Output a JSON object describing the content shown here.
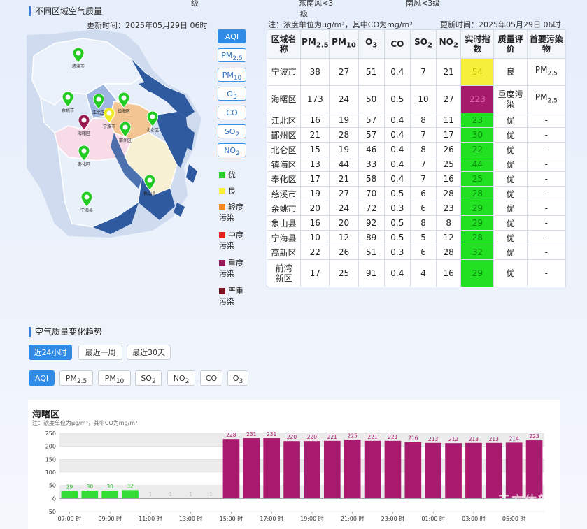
{
  "top_fragments": {
    "a": "级",
    "b": "东南风<3",
    "c": "级",
    "d": "南风<3级"
  },
  "map_section": {
    "title": "不同区域空气质量",
    "update_time": "更新时间：2025年05月29日 06时"
  },
  "markers": [
    {
      "name": "慈溪市",
      "color": "#22cc22"
    },
    {
      "name": "余姚市",
      "color": "#22cc22"
    },
    {
      "name": "江北区",
      "color": "#22cc22"
    },
    {
      "name": "镇海区",
      "color": "#22cc22"
    },
    {
      "name": "宁波市",
      "color": "#eeee22"
    },
    {
      "name": "海曙区",
      "color": "#9b1a52"
    },
    {
      "name": "北仑区",
      "color": "#22cc22"
    },
    {
      "name": "鄞州区",
      "color": "#22cc22"
    },
    {
      "name": "奉化区",
      "color": "#22cc22"
    },
    {
      "name": "象山县",
      "color": "#22cc22"
    },
    {
      "name": "宁海县",
      "color": "#22cc22"
    }
  ],
  "pollutant_buttons": [
    {
      "base": "AQI",
      "sub": ""
    },
    {
      "base": "PM",
      "sub": "2.5"
    },
    {
      "base": "PM",
      "sub": "10"
    },
    {
      "base": "O",
      "sub": "3"
    },
    {
      "base": "CO",
      "sub": ""
    },
    {
      "base": "SO",
      "sub": "2"
    },
    {
      "base": "NO",
      "sub": "2"
    }
  ],
  "legend": [
    {
      "label": "优",
      "color": "#22d022"
    },
    {
      "label": "良",
      "color": "#f6f03a"
    },
    {
      "label": "轻度污染",
      "color": "#f08c1e"
    },
    {
      "label": "中度污染",
      "color": "#e8201e"
    },
    {
      "label": "重度污染",
      "color": "#96195a"
    },
    {
      "label": "严重污染",
      "color": "#7a1020"
    }
  ],
  "table": {
    "note": "注：浓度单位为μg/m³，其中CO为mg/m³",
    "update_time": "更新时间：2025年05月29日 06时",
    "headers": [
      "区域名称",
      "PM2.5",
      "PM10",
      "O3",
      "CO",
      "SO2",
      "NO2",
      "实时指数",
      "质量评价",
      "首要污染物"
    ],
    "rows": [
      {
        "area": "宁波市",
        "pm25": "38",
        "pm10": "27",
        "o3": "51",
        "co": "0.4",
        "so2": "7",
        "no2": "21",
        "aqi": "54",
        "aqi_color": "#f6f03a",
        "aqi_text_color": "#c9c000",
        "level": "良",
        "primary_base": "PM",
        "primary_sub": "2.5"
      },
      {
        "area": "海曙区",
        "pm25": "173",
        "pm10": "24",
        "o3": "50",
        "co": "0.5",
        "so2": "10",
        "no2": "27",
        "aqi": "223",
        "aqi_color": "#a51a6a",
        "aqi_text_color": "#dd66aa",
        "level": "重度污染",
        "primary_base": "PM",
        "primary_sub": "2.5"
      },
      {
        "area": "江北区",
        "pm25": "16",
        "pm10": "19",
        "o3": "57",
        "co": "0.4",
        "so2": "8",
        "no2": "11",
        "aqi": "23",
        "aqi_color": "#22e022",
        "aqi_text_color": "#0a8a0a",
        "level": "优",
        "primary_base": "-",
        "primary_sub": ""
      },
      {
        "area": "鄞州区",
        "pm25": "21",
        "pm10": "28",
        "o3": "57",
        "co": "0.4",
        "so2": "7",
        "no2": "17",
        "aqi": "30",
        "aqi_color": "#22e022",
        "aqi_text_color": "#0a8a0a",
        "level": "优",
        "primary_base": "-",
        "primary_sub": ""
      },
      {
        "area": "北仑区",
        "pm25": "15",
        "pm10": "19",
        "o3": "46",
        "co": "0.4",
        "so2": "8",
        "no2": "26",
        "aqi": "22",
        "aqi_color": "#22e022",
        "aqi_text_color": "#0a8a0a",
        "level": "优",
        "primary_base": "-",
        "primary_sub": ""
      },
      {
        "area": "镇海区",
        "pm25": "13",
        "pm10": "44",
        "o3": "33",
        "co": "0.4",
        "so2": "7",
        "no2": "25",
        "aqi": "44",
        "aqi_color": "#22e022",
        "aqi_text_color": "#0a8a0a",
        "level": "优",
        "primary_base": "-",
        "primary_sub": ""
      },
      {
        "area": "奉化区",
        "pm25": "17",
        "pm10": "21",
        "o3": "58",
        "co": "0.4",
        "so2": "7",
        "no2": "16",
        "aqi": "25",
        "aqi_color": "#22e022",
        "aqi_text_color": "#0a8a0a",
        "level": "优",
        "primary_base": "-",
        "primary_sub": ""
      },
      {
        "area": "慈溪市",
        "pm25": "19",
        "pm10": "27",
        "o3": "70",
        "co": "0.5",
        "so2": "6",
        "no2": "28",
        "aqi": "28",
        "aqi_color": "#22e022",
        "aqi_text_color": "#0a8a0a",
        "level": "优",
        "primary_base": "-",
        "primary_sub": ""
      },
      {
        "area": "余姚市",
        "pm25": "20",
        "pm10": "24",
        "o3": "72",
        "co": "0.3",
        "so2": "6",
        "no2": "23",
        "aqi": "29",
        "aqi_color": "#22e022",
        "aqi_text_color": "#0a8a0a",
        "level": "优",
        "primary_base": "-",
        "primary_sub": ""
      },
      {
        "area": "象山县",
        "pm25": "16",
        "pm10": "20",
        "o3": "92",
        "co": "0.5",
        "so2": "8",
        "no2": "8",
        "aqi": "29",
        "aqi_color": "#22e022",
        "aqi_text_color": "#0a8a0a",
        "level": "优",
        "primary_base": "-",
        "primary_sub": ""
      },
      {
        "area": "宁海县",
        "pm25": "10",
        "pm10": "12",
        "o3": "89",
        "co": "0.5",
        "so2": "5",
        "no2": "12",
        "aqi": "28",
        "aqi_color": "#22e022",
        "aqi_text_color": "#0a8a0a",
        "level": "优",
        "primary_base": "-",
        "primary_sub": ""
      },
      {
        "area": "高新区",
        "pm25": "22",
        "pm10": "26",
        "o3": "51",
        "co": "0.3",
        "so2": "6",
        "no2": "28",
        "aqi": "32",
        "aqi_color": "#22e022",
        "aqi_text_color": "#0a8a0a",
        "level": "优",
        "primary_base": "-",
        "primary_sub": ""
      },
      {
        "area": "前湾新区",
        "pm25": "17",
        "pm10": "25",
        "o3": "91",
        "co": "0.4",
        "so2": "4",
        "no2": "16",
        "aqi": "29",
        "aqi_color": "#22e022",
        "aqi_text_color": "#0a8a0a",
        "level": "优",
        "primary_base": "-",
        "primary_sub": ""
      }
    ]
  },
  "trend": {
    "title": "空气质量变化趋势",
    "range_buttons": [
      "近24小时",
      "最近一周",
      "最近30天"
    ],
    "pollutant_buttons": [
      {
        "base": "AQI",
        "sub": ""
      },
      {
        "base": "PM",
        "sub": "2.5"
      },
      {
        "base": "PM",
        "sub": "10"
      },
      {
        "base": "SO",
        "sub": "2"
      },
      {
        "base": "NO",
        "sub": "2"
      },
      {
        "base": "CO",
        "sub": ""
      },
      {
        "base": "O",
        "sub": "3"
      }
    ]
  },
  "chart_data": {
    "type": "bar",
    "title": "海曙区",
    "subtitle": "注：浓度单位为μg/m³，其中CO为mg/m³",
    "categories": [
      "07:00 时",
      "08:00 时",
      "09:00 时",
      "10:00 时",
      "11:00 时",
      "12:00 时",
      "13:00 时",
      "14:00 时",
      "15:00 时",
      "16:00 时",
      "17:00 时",
      "18:00 时",
      "19:00 时",
      "20:00 时",
      "21:00 时",
      "22:00 时",
      "23:00 时",
      "00:00 时",
      "01:00 时",
      "02:00 时",
      "03:00 时",
      "04:00 时",
      "05:00 时",
      "06:00 时"
    ],
    "x_tick_labels": [
      "07:00 时",
      "09:00 时",
      "11:00 时",
      "13:00 时",
      "15:00 时",
      "17:00 时",
      "19:00 时",
      "21:00 时",
      "23:00 时",
      "01:00 时",
      "03:00 时",
      "05:00 时"
    ],
    "values": [
      29,
      30,
      30,
      32,
      1,
      1,
      1,
      1,
      228,
      231,
      231,
      220,
      220,
      221,
      225,
      221,
      221,
      216,
      213,
      212,
      213,
      213,
      214,
      223
    ],
    "labels": [
      "29",
      "30",
      "30",
      "32",
      "1",
      "1",
      "1",
      "1",
      "228",
      "231",
      "231",
      "220",
      "220",
      "221",
      "225",
      "221",
      "221",
      "216",
      "213",
      "212",
      "213",
      "213",
      "214",
      "223"
    ],
    "colors": [
      "#33dd33",
      "#33dd33",
      "#33dd33",
      "#33dd33",
      "#dddddd",
      "#dddddd",
      "#dddddd",
      "#dddddd",
      "#a81a6e",
      "#a81a6e",
      "#a81a6e",
      "#a81a6e",
      "#a81a6e",
      "#a81a6e",
      "#a81a6e",
      "#a81a6e",
      "#a81a6e",
      "#a81a6e",
      "#a81a6e",
      "#a81a6e",
      "#a81a6e",
      "#a81a6e",
      "#a81a6e",
      "#a81a6e"
    ],
    "label_colors": [
      "#22bb22",
      "#22bb22",
      "#22bb22",
      "#22bb22",
      "#bbbbbb",
      "#bbbbbb",
      "#bbbbbb",
      "#bbbbbb",
      "#a81a6e",
      "#a81a6e",
      "#a81a6e",
      "#a81a6e",
      "#a81a6e",
      "#a81a6e",
      "#a81a6e",
      "#a81a6e",
      "#a81a6e",
      "#a81a6e",
      "#a81a6e",
      "#a81a6e",
      "#a81a6e",
      "#a81a6e",
      "#a81a6e",
      "#a81a6e"
    ],
    "y_ticks": [
      -50,
      0,
      50,
      100,
      150,
      200,
      250
    ],
    "ylim": [
      -50,
      250
    ],
    "grid": "horizontal bands"
  },
  "watermark": "正方体新"
}
